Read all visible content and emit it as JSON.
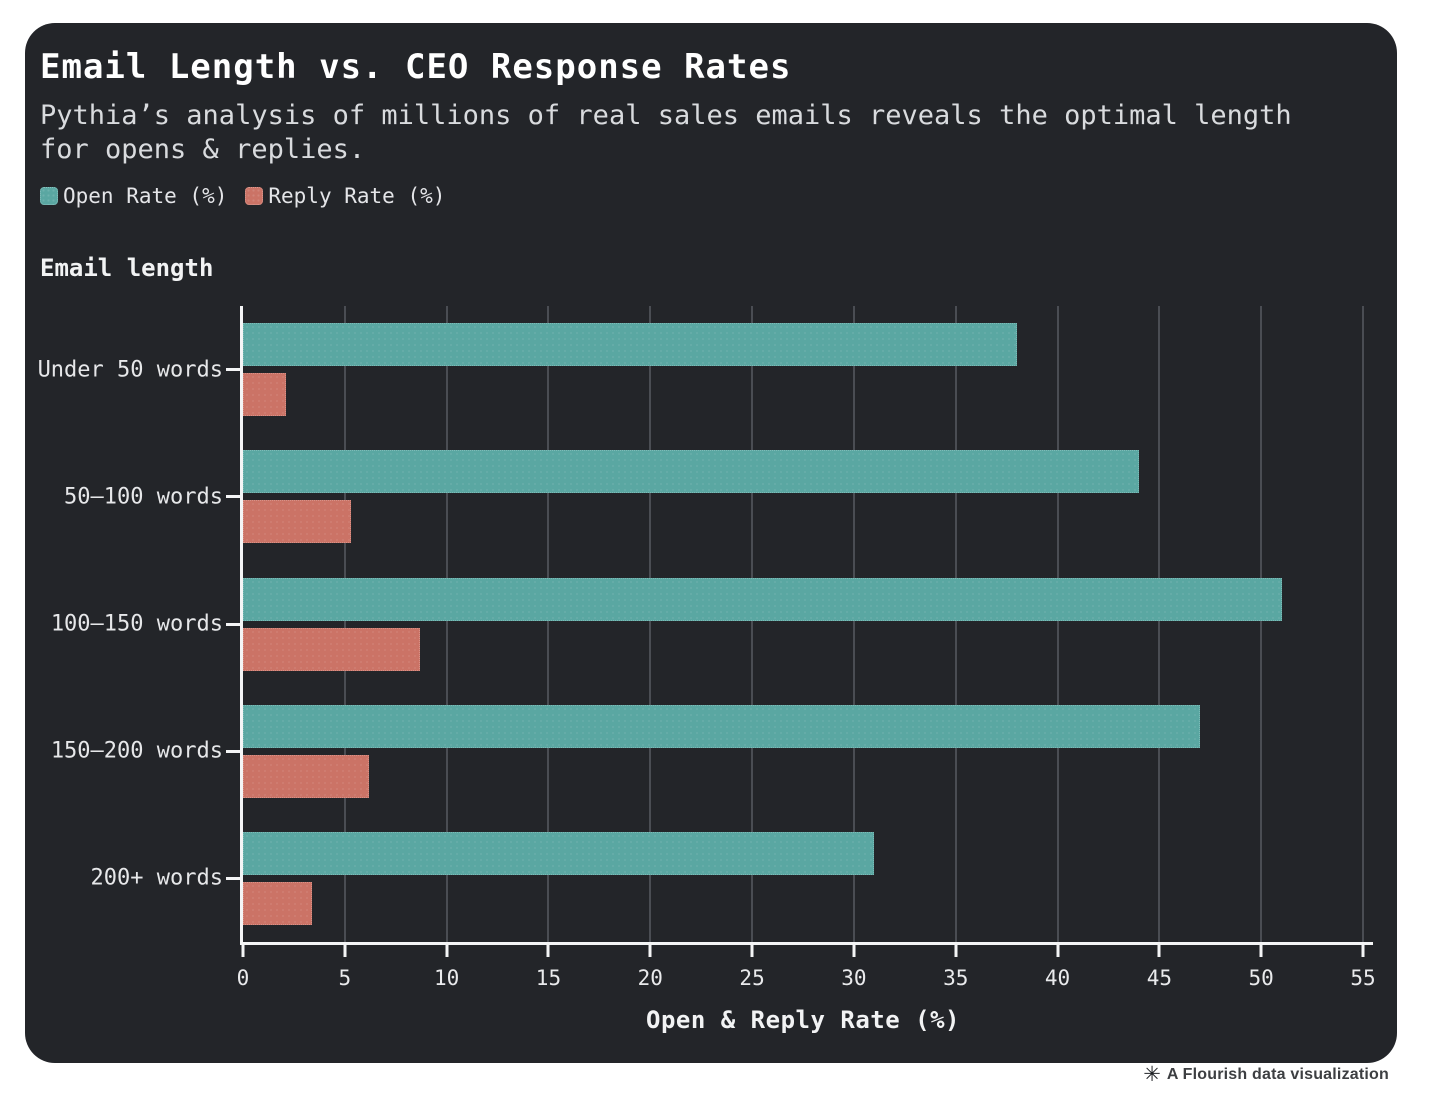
{
  "header": {
    "title": "Email Length vs. CEO Response Rates",
    "subtitle": "Pythia’s analysis of millions of real sales emails reveals the optimal length for opens & replies."
  },
  "legend": {
    "items": [
      {
        "label": "Open Rate (%)",
        "color": "#5aa7a2"
      },
      {
        "label": "Reply Rate (%)",
        "color": "#cb7366"
      }
    ]
  },
  "chart_data": {
    "type": "bar",
    "orientation": "horizontal",
    "title": "Email Length vs. CEO Response Rates",
    "y_axis_title": "Email length",
    "xlabel": "Open & Reply Rate (%)",
    "categories": [
      "Under 50 words",
      "50–100 words",
      "100–150 words",
      "150–200 words",
      "200+ words"
    ],
    "series": [
      {
        "name": "Open Rate (%)",
        "color": "#5aa7a2",
        "values": [
          38,
          44,
          51,
          47,
          31
        ]
      },
      {
        "name": "Reply Rate (%)",
        "color": "#cb7366",
        "values": [
          2.1,
          5.3,
          8.7,
          6.2,
          3.4
        ]
      }
    ],
    "xlim": [
      0,
      55
    ],
    "xticks": [
      0,
      5,
      10,
      15,
      20,
      25,
      30,
      35,
      40,
      45,
      50,
      55
    ],
    "grid": true,
    "legend_position": "top-left"
  },
  "footer": {
    "icon": "flourish-asterisk",
    "icon_glyph": "✳",
    "text": "A Flourish data visualization"
  },
  "colors": {
    "card_bg": "#232529",
    "page_bg": "#ffffff",
    "grid": "#4a4d53",
    "axis": "#f4f5f6",
    "title_text": "#ffffff",
    "subtitle_text": "#d9dbde",
    "label_text": "#e6e7e9",
    "footer_text": "#3d3f42"
  }
}
